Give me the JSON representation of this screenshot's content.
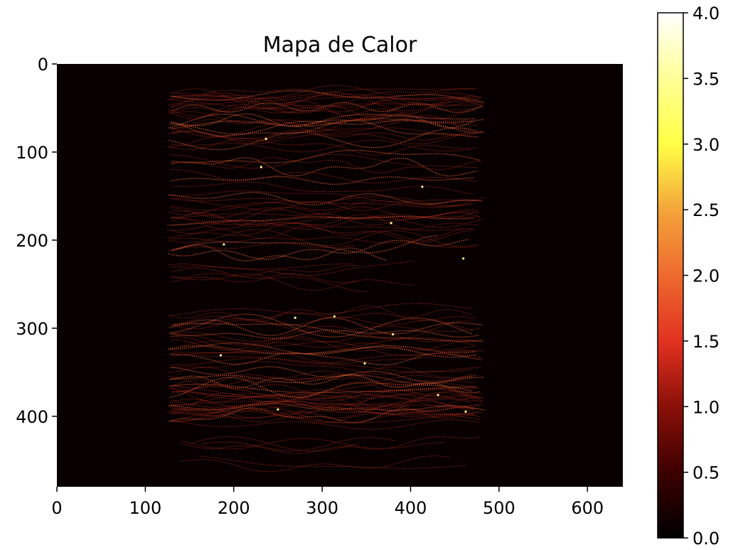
{
  "chart_data": {
    "type": "heatmap",
    "title": "Mapa de Calor",
    "xlabel": "",
    "ylabel": "",
    "xlim": [
      0,
      640
    ],
    "ylim": [
      480,
      0
    ],
    "xticks": [
      0,
      100,
      200,
      300,
      400,
      500,
      600
    ],
    "yticks": [
      0,
      100,
      200,
      300,
      400
    ],
    "colorbar": {
      "colormap": "hot",
      "range": [
        0.0,
        4.0
      ],
      "ticks": [
        "0.0",
        "0.5",
        "1.0",
        "1.5",
        "2.0",
        "2.5",
        "3.0",
        "3.5",
        "4.0"
      ]
    },
    "background_value": 0.0,
    "trace_regions": [
      {
        "x_range": [
          125,
          485
        ],
        "y_range": [
          28,
          200
        ],
        "value_range": [
          0.5,
          2.0
        ]
      },
      {
        "x_range": [
          125,
          485
        ],
        "y_range": [
          200,
          415
        ],
        "value_range": [
          0.5,
          2.0
        ]
      },
      {
        "x_range": [
          125,
          485
        ],
        "y_range": [
          425,
          460
        ],
        "value_range": [
          0.5,
          1.5
        ]
      }
    ],
    "grid": false,
    "colors": {
      "background": "#080000",
      "trace": "#c03020",
      "trace_bright": "#f06838",
      "peak": "#ffff90"
    }
  }
}
